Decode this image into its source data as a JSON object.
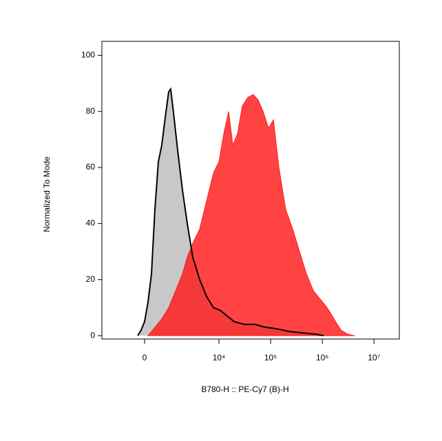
{
  "chart_data": {
    "type": "histogram-overlay",
    "x_label": "B780-H :: PE-Cy7 (B)-H",
    "y_label": "Normalized To Mode",
    "xscale": "biexponential",
    "xlim": [
      -2390,
      30900000
    ],
    "xticks": [
      0,
      {
        "value": 10000,
        "label": "10⁴"
      },
      {
        "value": 100000,
        "label": "10⁵"
      },
      {
        "value": 1000000,
        "label": "10⁶"
      },
      {
        "value": 10000000,
        "label": "10⁷"
      }
    ],
    "ylim": [
      -1.2,
      105
    ],
    "yticks": [
      0,
      20,
      40,
      60,
      80,
      100
    ],
    "series": [
      {
        "color": "#c8c8c8",
        "x": [
          -228,
          -112,
          0,
          112,
          228,
          347,
          476,
          616,
          774,
          942,
          1051,
          1212,
          1511,
          1905,
          2387,
          3081,
          4212,
          5745,
          7811,
          10658,
          14454,
          19710,
          31171,
          49421,
          78110,
          124100,
          229220,
          423400,
          781100,
          1062150
        ],
        "values": [
          0,
          2,
          5,
          12,
          22,
          45,
          62,
          68,
          78,
          87,
          88,
          80,
          66,
          52,
          40,
          28,
          20,
          14,
          10,
          9,
          7,
          5,
          4,
          4,
          3,
          2.5,
          1.5,
          1,
          0.5,
          0
        ]
      },
      {
        "color": "#ff1a1a",
        "x": [
          112,
          347,
          616,
          942,
          1365,
          1905,
          2387,
          3081,
          4212,
          5745,
          7811,
          10000,
          12410,
          15400,
          18540,
          22920,
          28470,
          36350,
          46430,
          57600,
          71400,
          91250,
          113150,
          144540,
          196370,
          267180,
          362800,
          493480,
          670140,
          911040,
          1238080,
          1682650,
          2287820,
          3108340,
          4223050
        ],
        "values": [
          0,
          3,
          6,
          10,
          16,
          22,
          28,
          33,
          38,
          48,
          58,
          62,
          72,
          80,
          68,
          72,
          82,
          85,
          86,
          84,
          80,
          74,
          77,
          60,
          45,
          38,
          30,
          22,
          16,
          13,
          10,
          6,
          2,
          0.5,
          0
        ]
      }
    ]
  }
}
